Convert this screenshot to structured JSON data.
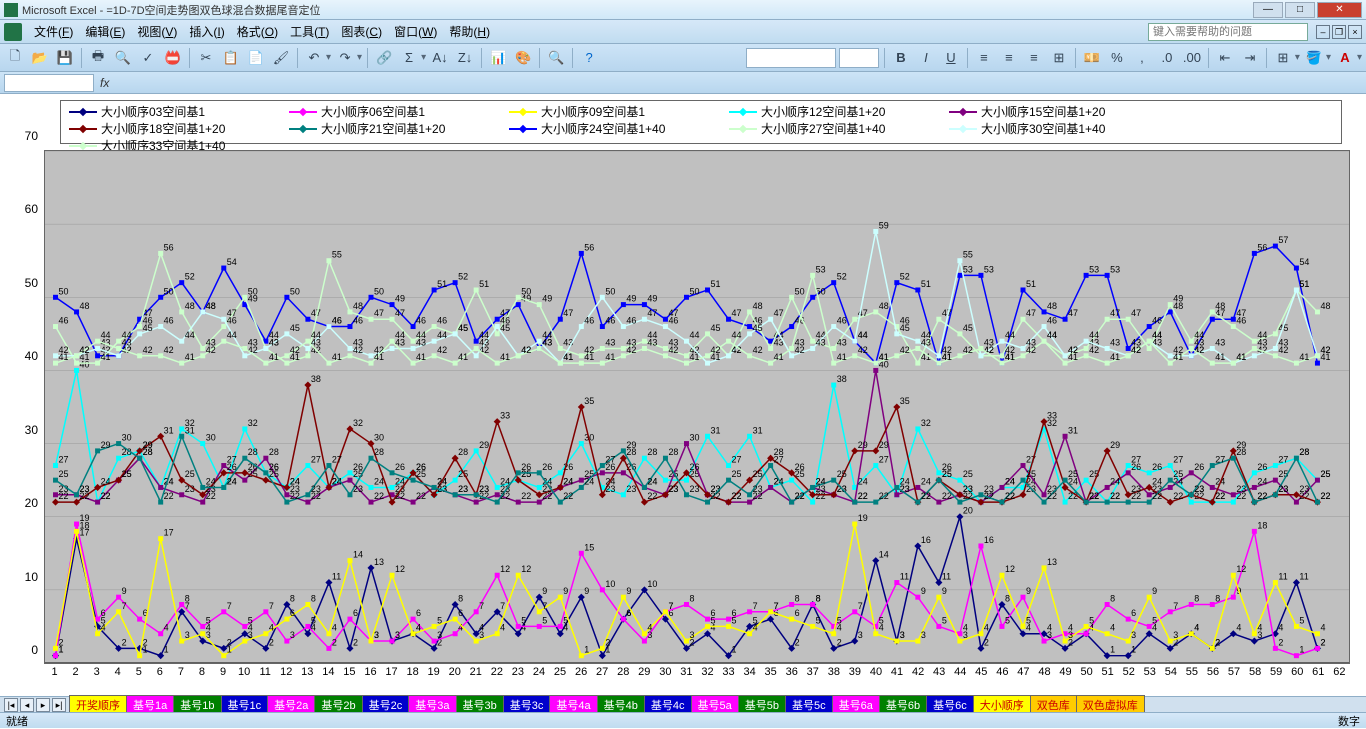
{
  "title": "Microsoft Excel - =1D-7D空间走势图双色球混合数据尾音定位",
  "menus": [
    "文件(F)",
    "编辑(E)",
    "视图(V)",
    "插入(I)",
    "格式(O)",
    "工具(T)",
    "图表(C)",
    "窗口(W)",
    "帮助(H)"
  ],
  "helpPlaceholder": "键入需要帮助的问题",
  "status": {
    "left": "就绪",
    "right": "数字"
  },
  "yaxis": {
    "min": 0,
    "max": 70,
    "step": 10
  },
  "xaxis": {
    "min": 1,
    "max": 62
  },
  "legend": {
    "items": [
      {
        "label": "大小顺序03空间基1",
        "color": "#000080",
        "marker": "diamond"
      },
      {
        "label": "大小顺序06空间基1",
        "color": "#ff00ff",
        "marker": "square"
      },
      {
        "label": "大小顺序09空间基1",
        "color": "#ffff00",
        "marker": "triangle"
      },
      {
        "label": "大小顺序12空间基1+20",
        "color": "#00ffff",
        "marker": "x"
      },
      {
        "label": "大小顺序15空间基1+20",
        "color": "#800080",
        "marker": "x"
      },
      {
        "label": "大小顺序18空间基1+20",
        "color": "#800000",
        "marker": "diamond"
      },
      {
        "label": "大小顺序21空间基1+20",
        "color": "#008080",
        "marker": "line"
      },
      {
        "label": "大小顺序24空间基1+40",
        "color": "#0000ff",
        "marker": "line"
      },
      {
        "label": "大小顺序27空间基1+40",
        "color": "#ccffcc",
        "marker": "line"
      },
      {
        "label": "大小顺序30空间基1+40",
        "color": "#ccffff",
        "marker": "line"
      },
      {
        "label": "大小顺序33空间基1+40",
        "color": "#ccffcc",
        "marker": "line"
      }
    ]
  },
  "series": [
    {
      "name": "s03",
      "color": "#000080",
      "marker": "diamond",
      "data": [
        1,
        17,
        5,
        2,
        2,
        1,
        7,
        3,
        2,
        4,
        2,
        8,
        4,
        11,
        2,
        13,
        3,
        4,
        2,
        8,
        4,
        7,
        4,
        9,
        4,
        9,
        1,
        6,
        10,
        6,
        2,
        4,
        1,
        5,
        6,
        2,
        8,
        2,
        3,
        14,
        3,
        16,
        11,
        20,
        2,
        8,
        4,
        4,
        2,
        4,
        1,
        1,
        4,
        2,
        4,
        2,
        4,
        3,
        4,
        11,
        2
      ]
    },
    {
      "name": "s06",
      "color": "#ff00ff",
      "marker": "square",
      "data": [
        1,
        19,
        6,
        9,
        6,
        4,
        8,
        5,
        7,
        5,
        7,
        3,
        5,
        2,
        6,
        3,
        3,
        6,
        3,
        4,
        7,
        12,
        5,
        5,
        5,
        15,
        10,
        6,
        3,
        7,
        8,
        6,
        6,
        7,
        7,
        8,
        8,
        5,
        7,
        5,
        11,
        9,
        5,
        4,
        16,
        5,
        9,
        3,
        4,
        4,
        8,
        6,
        5,
        7,
        8,
        8,
        9,
        18,
        2,
        1,
        2
      ]
    },
    {
      "name": "s09",
      "color": "#ffff00",
      "marker": "triangle",
      "data": [
        2,
        18,
        4,
        7,
        1,
        17,
        3,
        4,
        1,
        3,
        4,
        6,
        8,
        4,
        14,
        3,
        12,
        4,
        5,
        6,
        3,
        4,
        12,
        7,
        9,
        1,
        2,
        9,
        4,
        7,
        3,
        5,
        5,
        4,
        7,
        6,
        5,
        4,
        19,
        4,
        3,
        3,
        9,
        3,
        4,
        12,
        5,
        13,
        3,
        5,
        4,
        3,
        9,
        3,
        4,
        2,
        12,
        4,
        11,
        5,
        4
      ]
    },
    {
      "name": "s12",
      "color": "#00ffff",
      "marker": "x",
      "data": [
        27,
        40,
        22,
        28,
        29,
        24,
        32,
        30,
        24,
        32,
        26,
        24,
        27,
        24,
        26,
        24,
        24,
        26,
        23,
        25,
        29,
        24,
        25,
        24,
        26,
        30,
        24,
        23,
        28,
        25,
        25,
        31,
        27,
        31,
        24,
        25,
        22,
        38,
        24,
        27,
        23,
        32,
        26,
        25,
        22,
        24,
        24,
        32,
        22,
        25,
        22,
        27,
        26,
        27,
        22,
        22,
        22,
        26,
        27,
        28,
        25
      ]
    },
    {
      "name": "s15",
      "color": "#800080",
      "marker": "x",
      "data": [
        23,
        23,
        22,
        25,
        28,
        24,
        23,
        22,
        27,
        25,
        28,
        23,
        22,
        24,
        25,
        22,
        23,
        22,
        24,
        23,
        22,
        23,
        22,
        22,
        24,
        25,
        26,
        26,
        24,
        23,
        30,
        23,
        22,
        22,
        24,
        22,
        24,
        23,
        22,
        40,
        23,
        24,
        22,
        23,
        22,
        24,
        27,
        23,
        31,
        22,
        24,
        26,
        23,
        24,
        26,
        24,
        23,
        24,
        25,
        22,
        25
      ]
    },
    {
      "name": "s18",
      "color": "#800000",
      "marker": "diamond",
      "data": [
        22,
        22,
        24,
        25,
        29,
        31,
        25,
        23,
        26,
        26,
        25,
        24,
        38,
        24,
        32,
        30,
        22,
        26,
        23,
        28,
        23,
        33,
        25,
        23,
        24,
        35,
        23,
        28,
        22,
        23,
        26,
        23,
        22,
        25,
        28,
        26,
        23,
        23,
        29,
        29,
        35,
        22,
        25,
        23,
        22,
        22,
        23,
        33,
        24,
        22,
        29,
        23,
        24,
        22,
        23,
        22,
        29,
        22,
        23,
        23,
        22
      ]
    },
    {
      "name": "s21",
      "color": "#008080",
      "marker": "line",
      "data": [
        25,
        23,
        29,
        30,
        28,
        22,
        31,
        24,
        24,
        28,
        26,
        22,
        23,
        27,
        23,
        28,
        26,
        25,
        24,
        23,
        23,
        22,
        26,
        26,
        22,
        24,
        27,
        29,
        24,
        28,
        23,
        22,
        25,
        23,
        27,
        22,
        24,
        25,
        22,
        22,
        24,
        22,
        25,
        22,
        23,
        22,
        25,
        22,
        25,
        22,
        22,
        22,
        22,
        25,
        23,
        27,
        28,
        22,
        23,
        28,
        22
      ]
    },
    {
      "name": "s24",
      "color": "#0000ff",
      "marker": "line",
      "data": [
        50,
        48,
        42,
        42,
        47,
        50,
        52,
        48,
        54,
        49,
        44,
        50,
        47,
        46,
        46,
        50,
        49,
        46,
        51,
        52,
        44,
        47,
        49,
        43,
        47,
        56,
        46,
        49,
        49,
        47,
        50,
        51,
        47,
        46,
        44,
        46,
        50,
        52,
        44,
        41,
        52,
        51,
        41,
        53,
        53,
        41,
        51,
        48,
        47,
        53,
        53,
        43,
        46,
        48,
        42,
        47,
        47,
        56,
        57,
        54,
        41
      ]
    },
    {
      "name": "s27",
      "color": "#ccffcc",
      "marker": "line",
      "data": [
        46,
        41,
        41,
        44,
        46,
        56,
        48,
        43,
        46,
        50,
        43,
        41,
        42,
        55,
        48,
        47,
        47,
        44,
        46,
        45,
        51,
        45,
        50,
        49,
        43,
        42,
        43,
        43,
        44,
        43,
        42,
        45,
        42,
        48,
        43,
        50,
        44,
        43,
        47,
        48,
        46,
        41,
        47,
        45,
        42,
        42,
        47,
        44,
        42,
        43,
        47,
        47,
        43,
        49,
        44,
        48,
        46,
        44,
        45,
        51,
        48
      ]
    },
    {
      "name": "s30",
      "color": "#ccffff",
      "marker": "line",
      "data": [
        42,
        42,
        43,
        42,
        45,
        46,
        44,
        48,
        47,
        42,
        43,
        45,
        43,
        46,
        43,
        42,
        43,
        43,
        44,
        45,
        42,
        46,
        42,
        44,
        41,
        46,
        50,
        46,
        47,
        46,
        44,
        41,
        42,
        45,
        47,
        42,
        43,
        46,
        44,
        59,
        45,
        44,
        42,
        55,
        42,
        44,
        43,
        46,
        42,
        44,
        43,
        42,
        44,
        42,
        42,
        43,
        41,
        42,
        43,
        51,
        42
      ]
    },
    {
      "name": "s33",
      "color": "#ccffcc",
      "marker": "line",
      "data": [
        41,
        42,
        44,
        43,
        42,
        42,
        41,
        42,
        44,
        43,
        41,
        42,
        44,
        41,
        42,
        41,
        44,
        41,
        42,
        41,
        43,
        41,
        42,
        43,
        41,
        41,
        41,
        42,
        43,
        42,
        41,
        42,
        44,
        42,
        41,
        43,
        53,
        41,
        42,
        41,
        42,
        43,
        41,
        42,
        43,
        41,
        42,
        44,
        41,
        42,
        41,
        42,
        44,
        41,
        43,
        41,
        41,
        43,
        42,
        41,
        42
      ]
    }
  ],
  "sheets": [
    {
      "label": "开奖顺序",
      "bg": "#ffff00",
      "fg": "#cc0000"
    },
    {
      "label": "基号1a",
      "bg": "#ff00ff",
      "fg": "#ffffff"
    },
    {
      "label": "基号1b",
      "bg": "#008000",
      "fg": "#ffffff"
    },
    {
      "label": "基号1c",
      "bg": "#0000cc",
      "fg": "#ffffff"
    },
    {
      "label": "基号2a",
      "bg": "#ff00ff",
      "fg": "#ffffff"
    },
    {
      "label": "基号2b",
      "bg": "#008000",
      "fg": "#ffffff"
    },
    {
      "label": "基号2c",
      "bg": "#0000cc",
      "fg": "#ffffff"
    },
    {
      "label": "基号3a",
      "bg": "#ff00ff",
      "fg": "#ffffff"
    },
    {
      "label": "基号3b",
      "bg": "#008000",
      "fg": "#ffffff"
    },
    {
      "label": "基号3c",
      "bg": "#0000cc",
      "fg": "#ffffff"
    },
    {
      "label": "基号4a",
      "bg": "#ff00ff",
      "fg": "#ffffff"
    },
    {
      "label": "基号4b",
      "bg": "#008000",
      "fg": "#ffffff"
    },
    {
      "label": "基号4c",
      "bg": "#0000cc",
      "fg": "#ffffff"
    },
    {
      "label": "基号5a",
      "bg": "#ff00ff",
      "fg": "#ffffff"
    },
    {
      "label": "基号5b",
      "bg": "#008000",
      "fg": "#ffffff"
    },
    {
      "label": "基号5c",
      "bg": "#0000cc",
      "fg": "#ffffff"
    },
    {
      "label": "基号6a",
      "bg": "#ff00ff",
      "fg": "#ffffff"
    },
    {
      "label": "基号6b",
      "bg": "#008000",
      "fg": "#ffffff"
    },
    {
      "label": "基号6c",
      "bg": "#0000cc",
      "fg": "#ffffff"
    },
    {
      "label": "大小顺序",
      "bg": "#ffff00",
      "fg": "#cc0000"
    },
    {
      "label": "双色库",
      "bg": "#ffcc00",
      "fg": "#cc0000"
    },
    {
      "label": "双色虚拟库",
      "bg": "#ffcc00",
      "fg": "#cc0000"
    }
  ]
}
